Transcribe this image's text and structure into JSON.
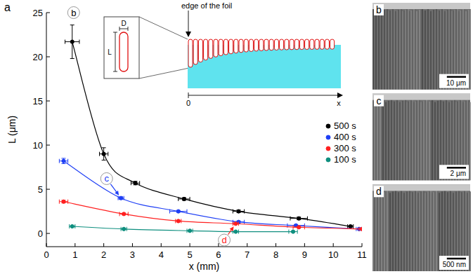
{
  "panel_label": "a",
  "chart_data": {
    "type": "scatter",
    "x_label": "x (mm)",
    "y_label": "L (μm)",
    "xlim": [
      0,
      11
    ],
    "xticks": [
      0,
      1,
      2,
      3,
      4,
      5,
      6,
      7,
      8,
      9,
      10,
      11
    ],
    "ylim": [
      -1.5,
      25
    ],
    "yticks": [
      0,
      5,
      10,
      15,
      20,
      25
    ],
    "legend": "right",
    "series": [
      {
        "name": "500 s",
        "color": "#000000",
        "marker": "circle",
        "line_style": "solid",
        "x": [
          0.9,
          2.0,
          3.1,
          4.8,
          6.7,
          8.8,
          10.6
        ],
        "values": [
          21.7,
          9.0,
          5.7,
          3.9,
          2.5,
          1.7,
          0.8
        ],
        "x_errors": [
          0.25,
          0.15,
          0.15,
          0.2,
          0.2,
          0.3,
          0.1
        ],
        "y_errors": [
          1.9,
          0.7,
          0.2,
          0.15,
          0.15,
          0.15,
          0.1
        ]
      },
      {
        "name": "400 s",
        "color": "#1f3ff5",
        "marker": "circle",
        "line_style": "solid",
        "x": [
          0.6,
          2.6,
          4.6,
          6.7,
          8.7,
          10.9
        ],
        "values": [
          8.2,
          4.0,
          2.5,
          1.3,
          0.9,
          0.5
        ],
        "x_errors": [
          0.15,
          0.1,
          0.3,
          0.2,
          0.3,
          0.1
        ],
        "y_errors": [
          0.3,
          0.15,
          0.1,
          0.1,
          0.1,
          0.05
        ]
      },
      {
        "name": "300 s",
        "color": "#ff2020",
        "marker": "circle",
        "line_style": "solid",
        "x": [
          0.6,
          2.7,
          4.6,
          6.6,
          8.8,
          11.0
        ],
        "values": [
          3.6,
          2.2,
          1.4,
          1.1,
          0.7,
          0.5
        ],
        "x_errors": [
          0.15,
          0.15,
          0.1,
          0.1,
          0.2,
          0.1
        ],
        "y_errors": [
          0.15,
          0.1,
          0.1,
          0.1,
          0.1,
          0.05
        ]
      },
      {
        "name": "100 s",
        "color": "#0f8f7f",
        "marker": "circle",
        "line_style": "solid",
        "x": [
          0.9,
          2.7,
          5.0,
          6.6,
          8.6
        ],
        "values": [
          0.8,
          0.5,
          0.3,
          0.2,
          0.2
        ],
        "x_errors": [
          0.1,
          0.1,
          0.1,
          0.1,
          0.15
        ],
        "y_errors": [
          0.05,
          0.05,
          0.05,
          0.05,
          0.05
        ]
      }
    ],
    "annotations": [
      {
        "text": "b",
        "x": 0.95,
        "y": 25,
        "color": "#000000"
      },
      {
        "text": "c",
        "x": 2.1,
        "y": 6.2,
        "color": "#1f3ff5",
        "target": "400 s"
      },
      {
        "text": "d",
        "x": 6.2,
        "y": -0.75,
        "color": "#ff2020",
        "target": "300 s"
      }
    ]
  },
  "inset": {
    "edge_label": "edge of the foil",
    "diameter_label": "D",
    "length_label": "L",
    "origin_label": "0",
    "axis_label": "x"
  },
  "sem_panels": [
    {
      "label": "b",
      "scale_bar": "10 μm"
    },
    {
      "label": "c",
      "scale_bar": "2 μm"
    },
    {
      "label": "d",
      "scale_bar": "500 nm"
    }
  ]
}
